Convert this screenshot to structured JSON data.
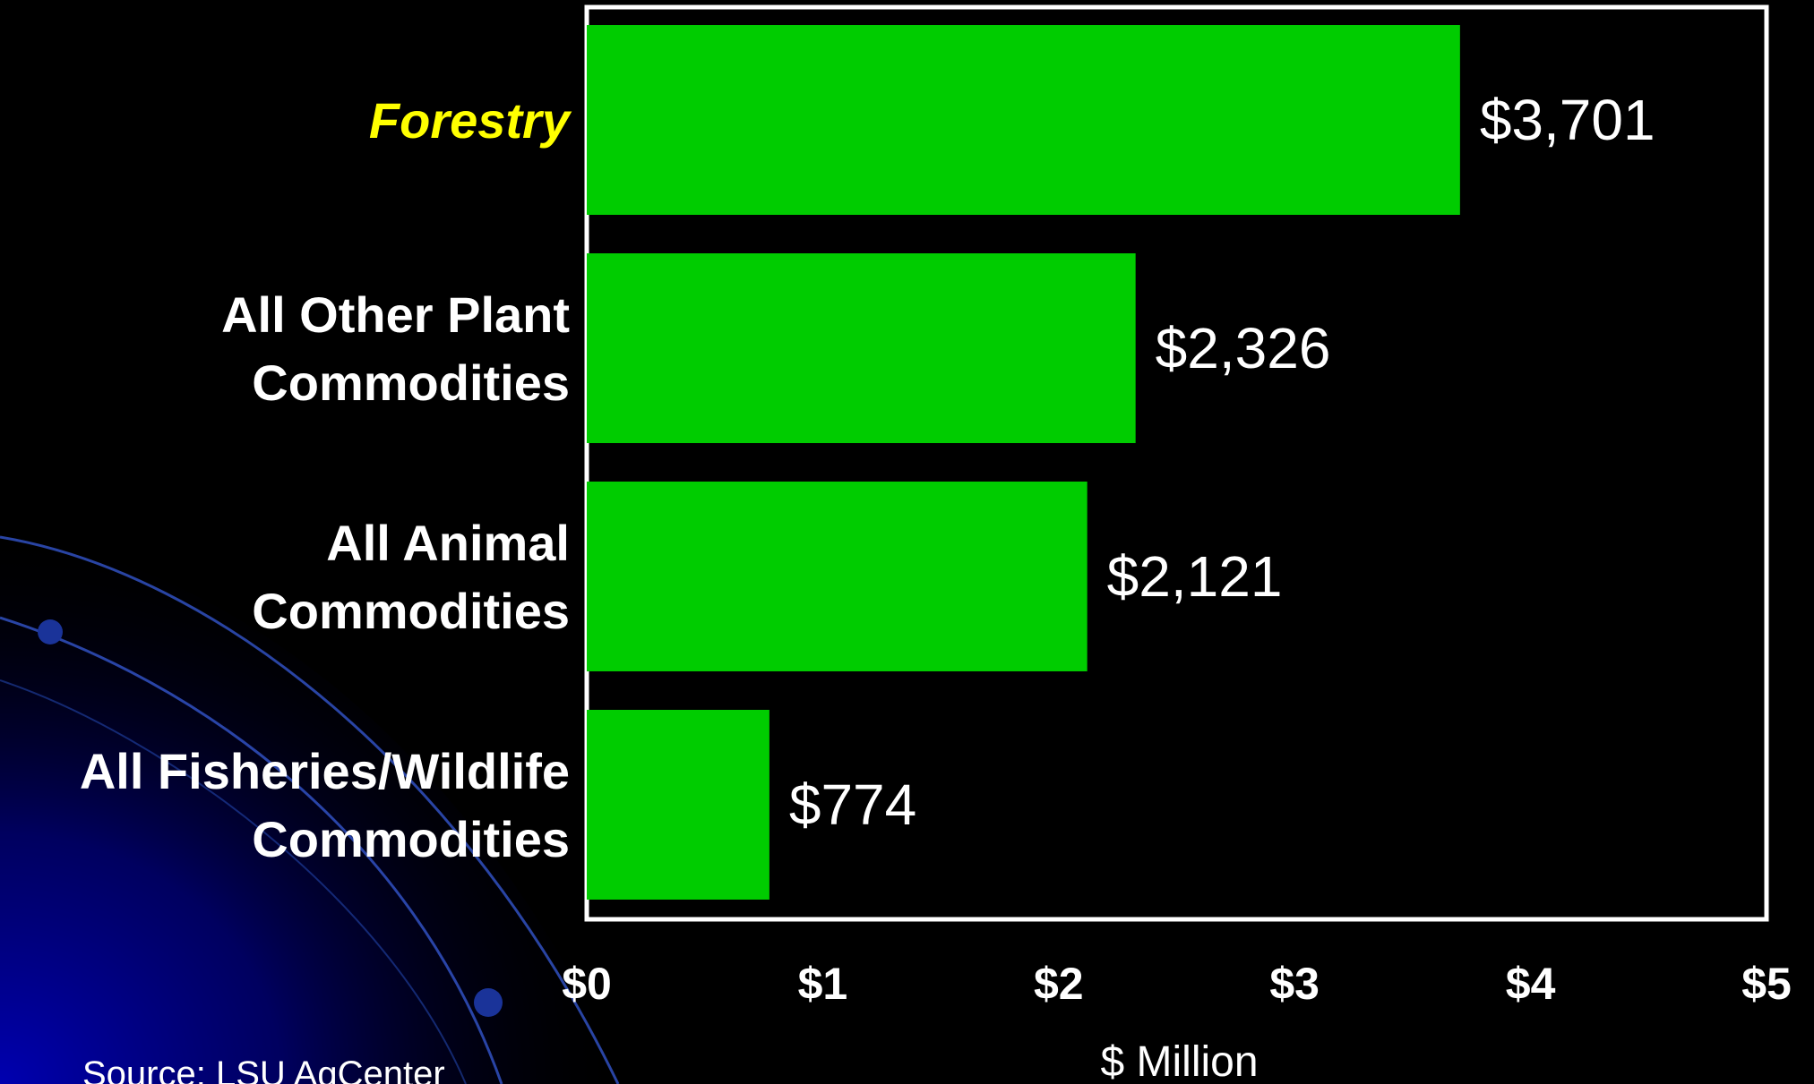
{
  "source": "Source: LSU AgCenter",
  "colors": {
    "bar": "#00CC00",
    "background": "#000000",
    "text": "#FFFFFF",
    "highlight": "#FFFF00",
    "frame": "#FFFFFF",
    "deco_gradient": "#0000AA"
  },
  "chart_data": {
    "type": "bar",
    "orientation": "horizontal",
    "categories": [
      [
        "Forestry"
      ],
      [
        "All Other Plant",
        "Commodities"
      ],
      [
        "All Animal",
        "Commodities"
      ],
      [
        "All Fisheries/Wildlife",
        "Commodities"
      ]
    ],
    "highlight_category": "Forestry",
    "values": [
      3.701,
      2.326,
      2.121,
      0.774
    ],
    "data_labels": [
      "$3,701",
      "$2,326",
      "$2,121",
      "$774"
    ],
    "xlim": [
      0,
      5
    ],
    "ticks": [
      0,
      1,
      2,
      3,
      4,
      5
    ],
    "tick_labels": [
      "$0",
      "$1",
      "$2",
      "$3",
      "$4",
      "$5"
    ],
    "xlabel": "$ Million",
    "title": "",
    "ylabel": "",
    "grid": false,
    "legend": "none"
  }
}
